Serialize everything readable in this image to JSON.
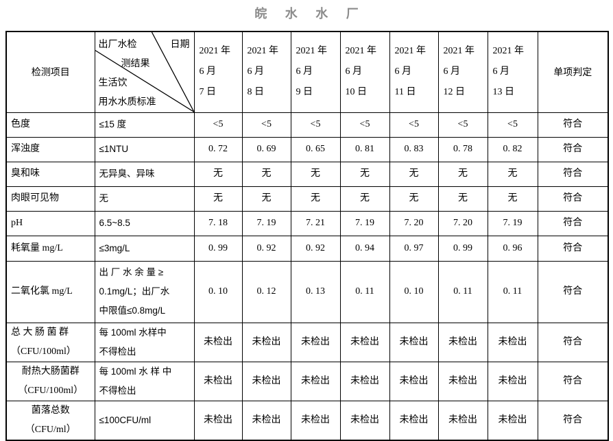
{
  "title": "皖 水 水 厂",
  "colors": {
    "title_gray": "#8c8c8c",
    "border_black": "#000000",
    "text_black": "#000000",
    "background": "#ffffff"
  },
  "table": {
    "corner_label": "检测项目",
    "diag_cell": {
      "top_left": "出厂水检",
      "top_right": "日期",
      "line2": "测结果",
      "line3": "生活饮",
      "line4": "用水水质标准"
    },
    "judge_header": "单项判定",
    "date_headers": [
      [
        "2021 年",
        "6 月",
        "7 日"
      ],
      [
        "2021 年",
        "6 月",
        "8 日"
      ],
      [
        "2021 年",
        "6 月",
        "9 日"
      ],
      [
        "2021 年",
        "6 月",
        "10 日"
      ],
      [
        "2021 年",
        "6 月",
        "11 日"
      ],
      [
        "2021 年",
        "6 月",
        "12 日"
      ],
      [
        "2021 年",
        "6 月",
        "13 日"
      ]
    ],
    "rows": [
      {
        "label": [
          "色度"
        ],
        "standard": [
          "≤15 度"
        ],
        "values": [
          "<5",
          "<5",
          "<5",
          "<5",
          "<5",
          "<5",
          "<5"
        ],
        "judge": "符合"
      },
      {
        "label": [
          "浑浊度"
        ],
        "standard": [
          "≤1NTU"
        ],
        "values": [
          "0. 72",
          "0. 69",
          "0. 65",
          "0. 81",
          "0. 83",
          "0. 78",
          "0. 82"
        ],
        "judge": "符合"
      },
      {
        "label": [
          "臭和味"
        ],
        "standard": [
          "无异臭、异味"
        ],
        "values": [
          "无",
          "无",
          "无",
          "无",
          "无",
          "无",
          "无"
        ],
        "judge": "符合"
      },
      {
        "label": [
          "肉眼可见物"
        ],
        "standard": [
          "无"
        ],
        "values": [
          "无",
          "无",
          "无",
          "无",
          "无",
          "无",
          "无"
        ],
        "judge": "符合"
      },
      {
        "label": [
          "pH"
        ],
        "standard": [
          "6.5~8.5"
        ],
        "values": [
          "7. 18",
          "7. 19",
          "7. 21",
          "7. 19",
          "7. 20",
          "7. 20",
          "7. 19"
        ],
        "judge": "符合"
      },
      {
        "label": [
          "耗氧量 mg/L"
        ],
        "standard": [
          "≤3mg/L"
        ],
        "values": [
          "0. 99",
          "0. 92",
          "0. 92",
          "0. 94",
          "0. 97",
          "0. 99",
          "0. 96"
        ],
        "judge": "符合"
      },
      {
        "label": [
          "二氧化氯 mg/L"
        ],
        "standard": [
          "出 厂 水 余 量 ≥",
          "0.1mg/L；出厂水",
          "中限值≤0.8mg/L"
        ],
        "values": [
          "0. 10",
          "0. 12",
          "0. 13",
          "0. 11",
          "0. 10",
          "0. 11",
          "0. 11"
        ],
        "judge": "符合"
      },
      {
        "label": [
          "总 大 肠 菌 群",
          "（CFU/100ml）"
        ],
        "standard": [
          "每 100ml 水样中",
          "不得检出"
        ],
        "values": [
          "未检出",
          "未检出",
          "未检出",
          "未检出",
          "未检出",
          "未检出",
          "未检出"
        ],
        "judge": "符合"
      },
      {
        "label": [
          "耐热大肠菌群",
          "（CFU/100ml）"
        ],
        "standard": [
          "每 100ml 水 样 中",
          "不得检出"
        ],
        "values": [
          "未检出",
          "未检出",
          "未检出",
          "未检出",
          "未检出",
          "未检出",
          "未检出"
        ],
        "judge": "符合"
      },
      {
        "label": [
          "菌落总数",
          "（CFU/ml）"
        ],
        "standard": [
          "≤100CFU/ml"
        ],
        "values": [
          "未检出",
          "未检出",
          "未检出",
          "未检出",
          "未检出",
          "未检出",
          "未检出"
        ],
        "judge": "符合"
      }
    ]
  }
}
